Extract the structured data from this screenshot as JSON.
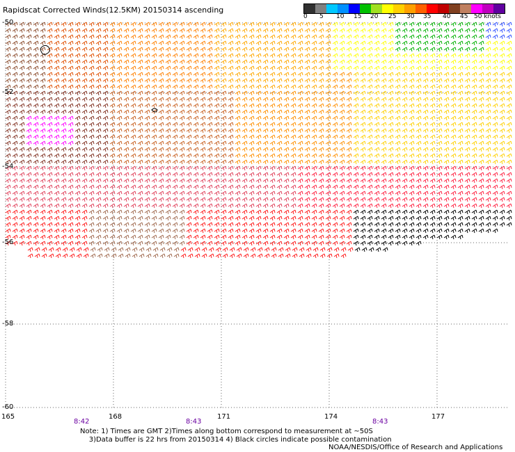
{
  "header": {
    "title": "Rapidscat Corrected Winds(12.5KM) 20150314 ascending"
  },
  "colorbar": {
    "colors": [
      "#303030",
      "#808080",
      "#00c8ff",
      "#0090ff",
      "#0000ff",
      "#00c000",
      "#a0e020",
      "#ffff00",
      "#ffd000",
      "#ffa000",
      "#ff6000",
      "#ff0000",
      "#c00000",
      "#804020",
      "#c08060",
      "#ff00ff",
      "#c000c0",
      "#6000a0"
    ],
    "labels": [
      "0",
      "5",
      "10",
      "15",
      "20",
      "25",
      "30",
      "35",
      "40",
      "45",
      "50 knots"
    ]
  },
  "map": {
    "lon_ticks": [
      "165",
      "168",
      "171",
      "174",
      "177"
    ],
    "lat_ticks": [
      "-50",
      "-52",
      "-54",
      "-56",
      "-58",
      "-60"
    ],
    "time_labels": [
      "8:42",
      "8:43",
      "8:43"
    ]
  },
  "footer": {
    "notes": "Note: 1) Times are GMT 2)Times along bottom correspond to measurement at ~50S\n    3)Data buffer is 22 hrs from 20150314 4) Black circles indicate possible contamination",
    "credit": "NOAA/NESDIS/Office of Research and Applications"
  }
}
